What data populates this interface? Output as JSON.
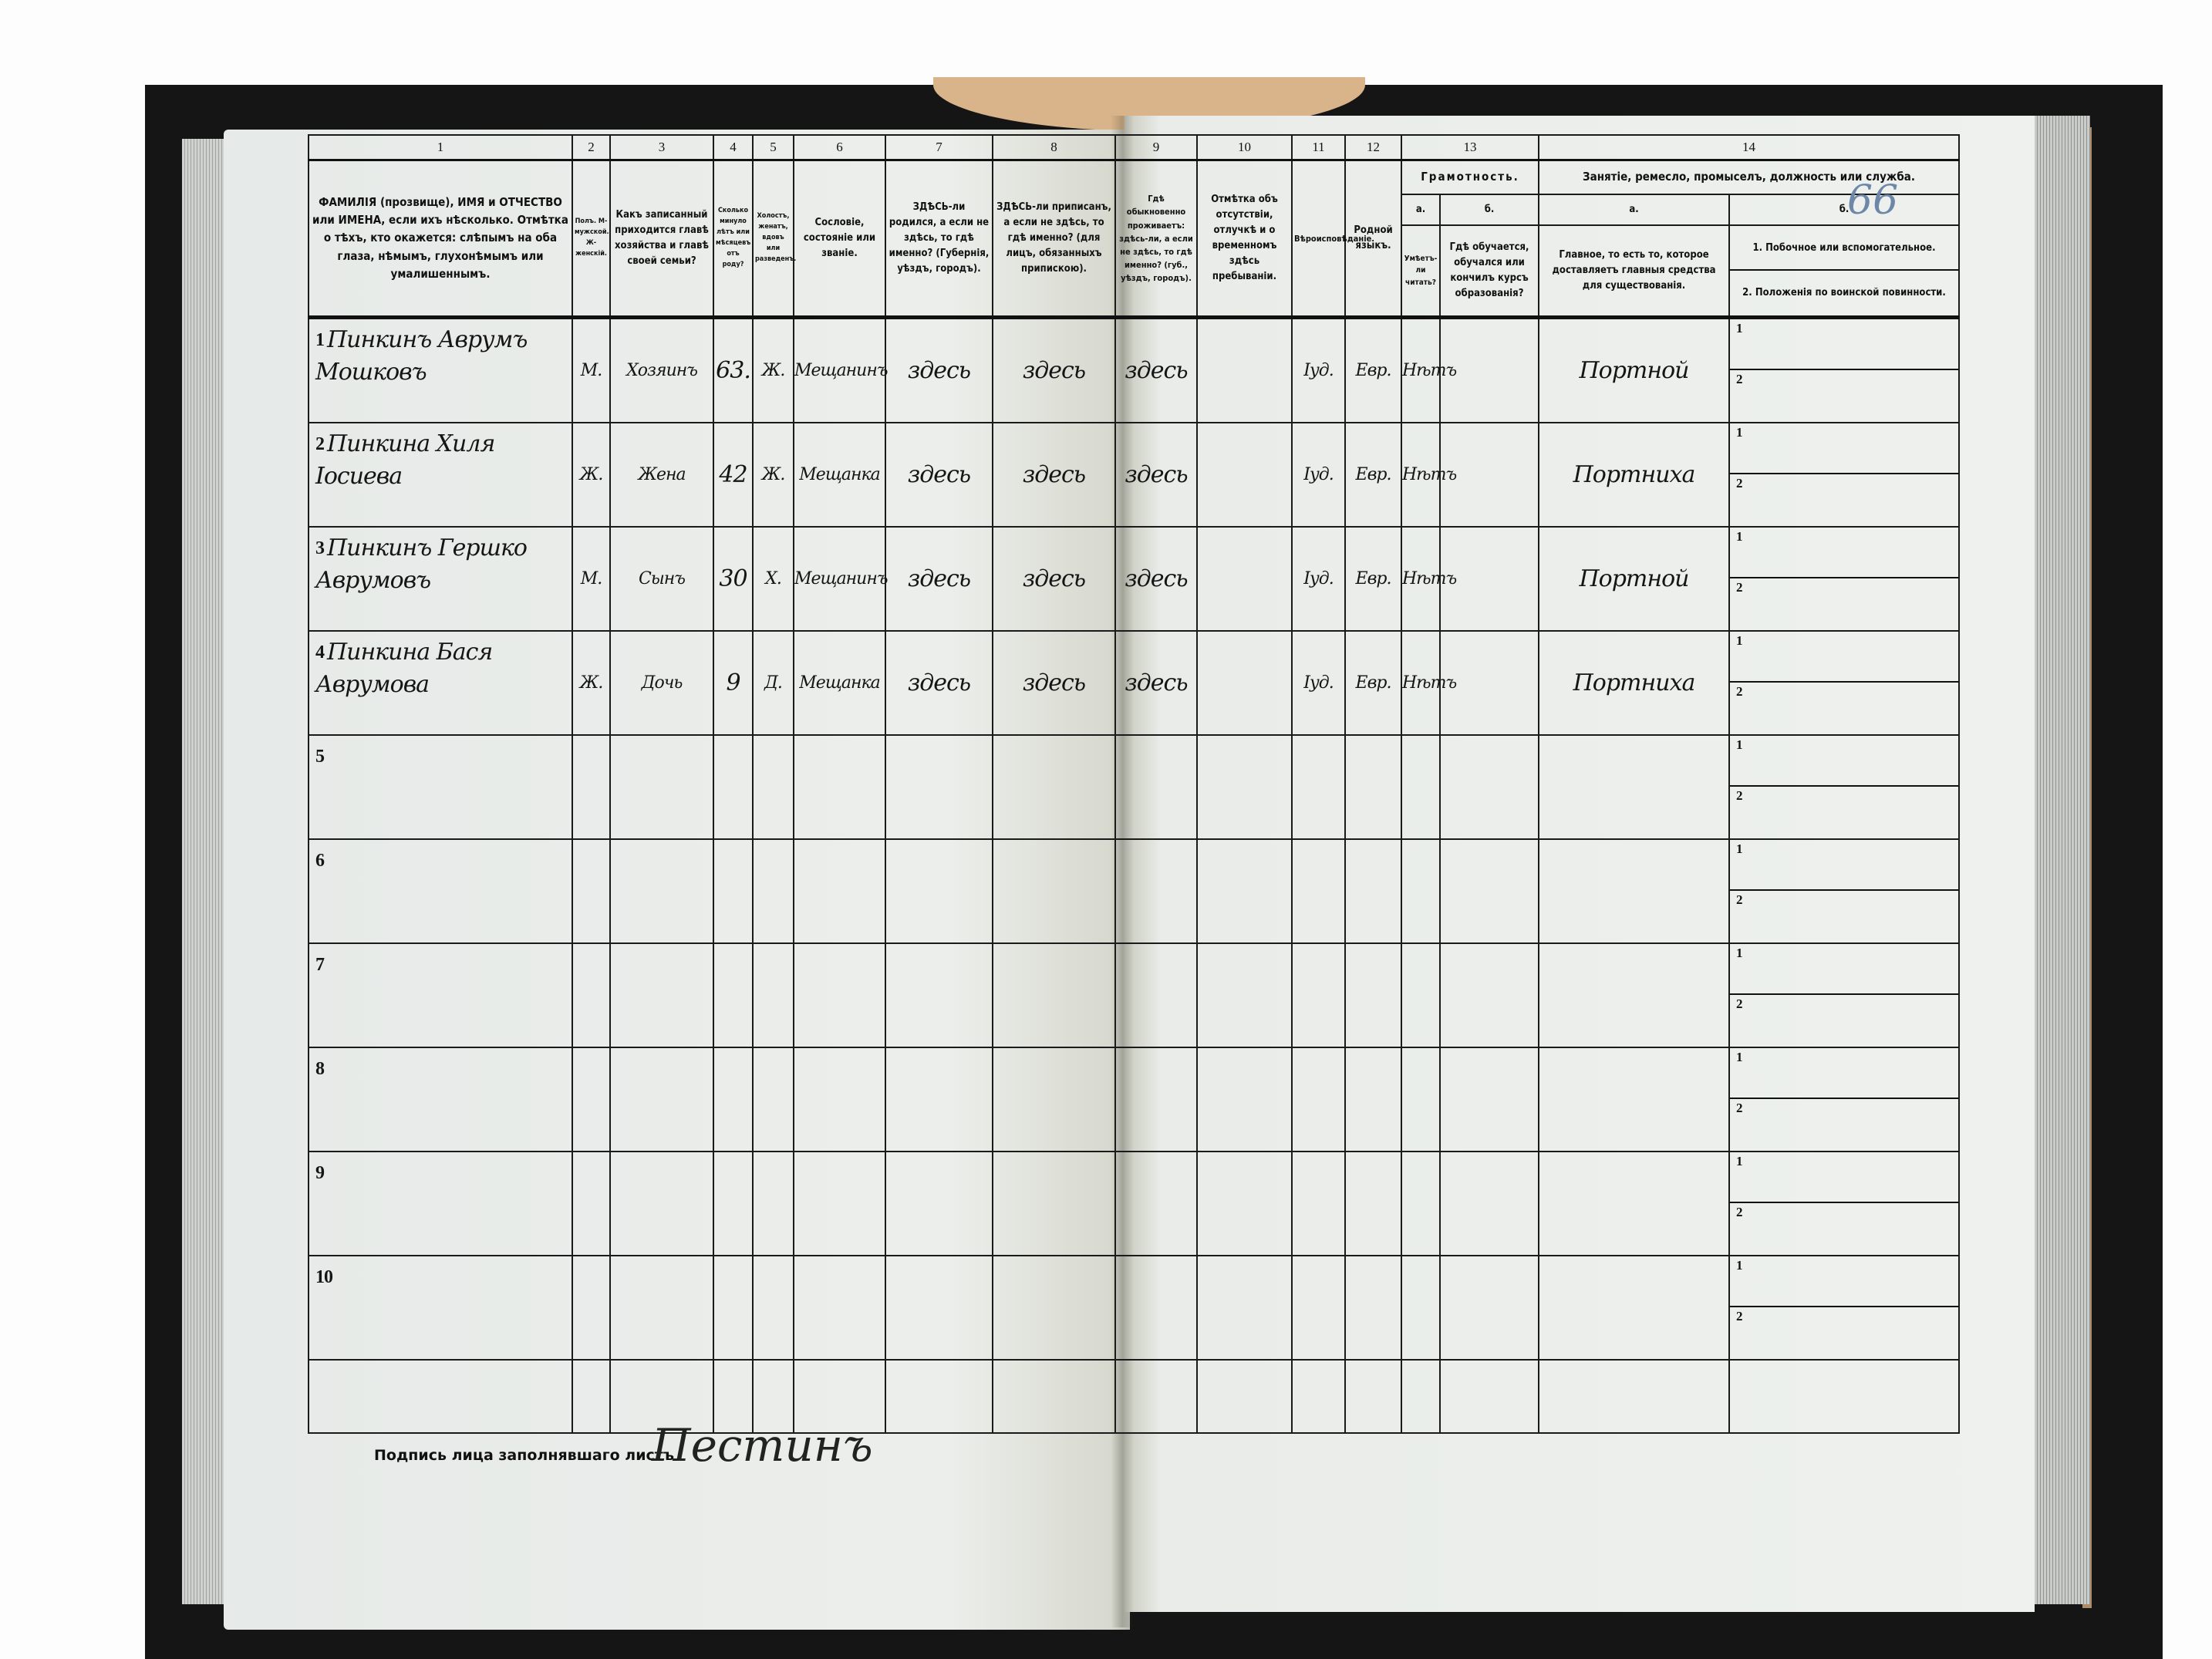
{
  "page_number": "66",
  "header": {
    "col_numbers": [
      "1",
      "2",
      "3",
      "4",
      "5",
      "6",
      "7",
      "8",
      "9",
      "10",
      "11",
      "12",
      "13",
      "14"
    ],
    "c1": "ФАМИЛІЯ (прозвище), ИМЯ и ОТЧЕСТВО или ИМЕНА, если ихъ нѣсколько. Отмѣтка о тѣхъ, кто окажется: слѣпымъ на оба глаза, нѣмымъ, глухонѣмымъ или умалишеннымъ.",
    "c2": "Полъ. М-мужской. Ж-женскій.",
    "c3": "Какъ записанный приходится главѣ хозяйства и главѣ своей семьи?",
    "c4": "Сколько минуло лѣтъ или мѣсяцевъ отъ роду?",
    "c5": "Холостъ, женатъ, вдовъ или разведенъ.",
    "c6": "Сословіе, состояніе или званіе.",
    "c7": "ЗДѢСЬ-ли родился, а если не здѣсь, то гдѣ именно? (Губернія, уѣздъ, городъ).",
    "c8": "ЗДѢСЬ-ли приписанъ, а если не здѣсь, то гдѣ именно? (для лицъ, обязанныхъ припискою).",
    "c9": "Гдѣ обыкновенно проживаетъ: здѣсь-ли, а если не здѣсь, то гдѣ именно? (губ., уѣздъ, городъ).",
    "c10": "Отмѣтка объ отсутствіи, отлучкѣ и о временномъ здѣсь пребываніи.",
    "c11": "Вѣроисповѣданіе.",
    "c12": "Родной языкъ.",
    "c13": "Грамотность.",
    "c13a_letter": "а.",
    "c13a": "Умѣетъ-ли читать?",
    "c13b_letter": "б.",
    "c13b": "Гдѣ обучается, обучался или кончилъ курсъ образованія?",
    "c14": "Занятіе, ремесло, промыселъ, должность или служба.",
    "c14a_letter": "а.",
    "c14a": "Главное, то есть то, которое доставляетъ главныя средства для существованія.",
    "c14b_letter": "б.",
    "c14b_1": "1. Побочное или вспомогательное.",
    "c14b_2": "2. Положенія по воинской повинности."
  },
  "sub_labels": [
    "1",
    "2"
  ],
  "rows": [
    {
      "n": "1",
      "name": "Пинкинъ Аврумъ Мошковъ",
      "sex": "М.",
      "relation": "Хозяинъ",
      "age": "63.",
      "marital": "Ж.",
      "estate": "Мещанинъ",
      "born": "здесь",
      "registered": "здесь",
      "resides": "здесь",
      "absence": "",
      "religion": "Iуд.",
      "language": "Евр.",
      "literate": "Нѣтъ",
      "education": "",
      "occupation": "Портной"
    },
    {
      "n": "2",
      "name": "Пинкина Хиля Іосиева",
      "sex": "Ж.",
      "relation": "Жена",
      "age": "42",
      "marital": "Ж.",
      "estate": "Мещанка",
      "born": "здесь",
      "registered": "здесь",
      "resides": "здесь",
      "absence": "",
      "religion": "Iуд.",
      "language": "Евр.",
      "literate": "Нѣтъ",
      "education": "",
      "occupation": "Портниха"
    },
    {
      "n": "3",
      "name": "Пинкинъ Гершко Аврумовъ",
      "sex": "М.",
      "relation": "Сынъ",
      "age": "30",
      "marital": "Х.",
      "estate": "Мещанинъ",
      "born": "здесь",
      "registered": "здесь",
      "resides": "здесь",
      "absence": "",
      "religion": "Iуд.",
      "language": "Евр.",
      "literate": "Нѣтъ",
      "education": "",
      "occupation": "Портной"
    },
    {
      "n": "4",
      "name": "Пинкина Бася Аврумова",
      "sex": "Ж.",
      "relation": "Дочь",
      "age": "9",
      "marital": "Д.",
      "estate": "Мещанка",
      "born": "здесь",
      "registered": "здесь",
      "resides": "здесь",
      "absence": "",
      "religion": "Iуд.",
      "language": "Евр.",
      "literate": "Нѣтъ",
      "education": "",
      "occupation": "Портниха"
    },
    {
      "n": "5"
    },
    {
      "n": "6"
    },
    {
      "n": "7"
    },
    {
      "n": "8"
    },
    {
      "n": "9"
    },
    {
      "n": "10"
    }
  ],
  "signature": {
    "label": "Подпись лица заполнявшаго листъ",
    "value": "Пестинъ"
  }
}
